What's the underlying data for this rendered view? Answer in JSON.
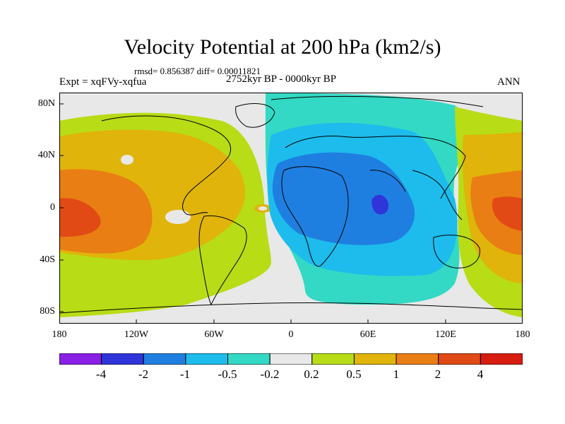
{
  "title": "Velocity Potential at 200 hPa (km2/s)",
  "stats": "rmsd= 0.856387 diff= 0.00011821",
  "experiment": "Expt = xqFVy-xqfua",
  "period": "2752kyr BP - 0000kyr BP",
  "season": "ANN",
  "axes": {
    "y_labels": [
      "80N",
      "40N",
      "0",
      "40S",
      "80S"
    ],
    "x_labels": [
      "180",
      "120W",
      "60W",
      "0",
      "60E",
      "120E",
      "180"
    ]
  },
  "colorbar": {
    "labels": [
      "-4",
      "-2",
      "-1",
      "-0.5",
      "-0.2",
      "0.2",
      "0.5",
      "1",
      "2",
      "4"
    ],
    "colors": [
      "#8a1fe6",
      "#2f35d8",
      "#1f7fe0",
      "#1dbcec",
      "#33d9c4",
      "#e8e8e8",
      "#b8dc16",
      "#e0b40a",
      "#e97e14",
      "#e14a14",
      "#d61d10"
    ]
  },
  "colors": {
    "land_outline": "#000000",
    "neutral": "#e8e8e8"
  }
}
